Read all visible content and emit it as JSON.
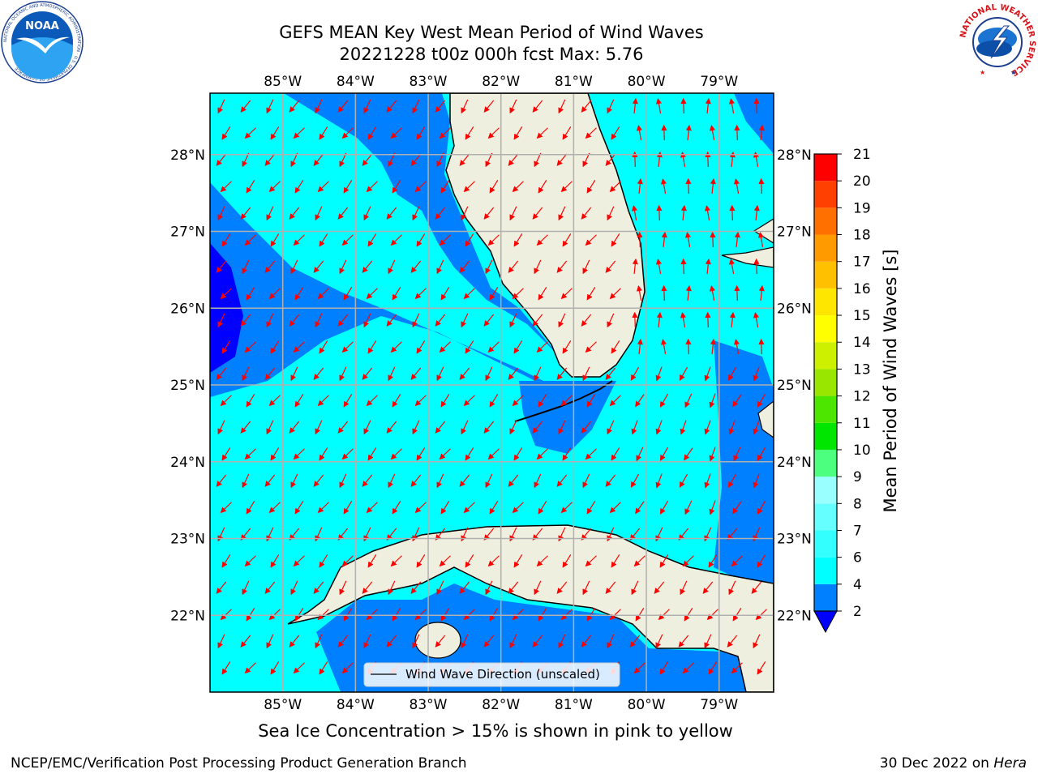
{
  "title": {
    "line1": "GEFS MEAN Key West Mean Period of Wind Waves",
    "line2": "20221228 t00z 000h fcst   Max: 5.76"
  },
  "map": {
    "lon_ticks": [
      "85°W",
      "84°W",
      "83°W",
      "82°W",
      "81°W",
      "80°W",
      "79°W"
    ],
    "lat_ticks": [
      "28°N",
      "27°N",
      "26°N",
      "25°N",
      "24°N",
      "23°N",
      "22°N"
    ],
    "lon_range": [
      -86.0,
      -78.25
    ],
    "lat_range": [
      21.0,
      28.8
    ],
    "legend_label": "Wind Wave Direction (unscaled)",
    "arrow_color": "#ff0000",
    "land_color": "#efefdf",
    "grid_color": "#b0b0b0"
  },
  "colorbar": {
    "label": "Mean Period of Wind Waves [s]",
    "ticks": [
      "2",
      "4",
      "6",
      "7",
      "8",
      "9",
      "10",
      "11",
      "12",
      "13",
      "14",
      "15",
      "16",
      "17",
      "18",
      "19",
      "20",
      "21"
    ],
    "colors": [
      "#0000ff",
      "#0080ff",
      "#00ffff",
      "#33ffff",
      "#66ffff",
      "#99ffff",
      "#4cff7f",
      "#00e600",
      "#4ce600",
      "#99e600",
      "#ccf000",
      "#ffff00",
      "#ffe600",
      "#ffc000",
      "#ff9a00",
      "#ff7000",
      "#ff4000",
      "#ff0000"
    ]
  },
  "subnote": "Sea Ice Concentration > 15% is shown in pink to yellow",
  "footer": {
    "left": "NCEP/EMC/Verification Post Processing Product Generation Branch",
    "right_date": "30 Dec 2022 on",
    "right_host": "Hera"
  },
  "logos": {
    "noaa_text": "NOAA",
    "noaa_ring": "NATIONAL OCEANIC AND ATMOSPHERIC ADMINISTRATION · U.S. DEPARTMENT OF COMMERCE",
    "nws_ring": "NATIONAL WEATHER SERVICE"
  }
}
